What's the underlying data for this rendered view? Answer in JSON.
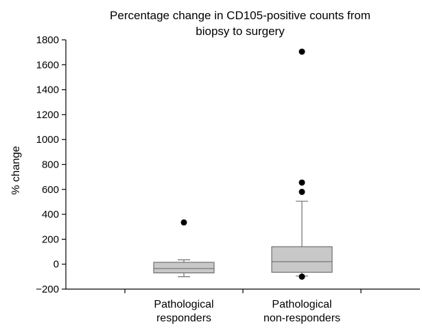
{
  "chart_data": {
    "type": "box",
    "title": [
      "Percentage change in CD105-positive counts from",
      "biopsy to surgery"
    ],
    "ylabel": "% change",
    "xlabel": "",
    "ylim": [
      -200,
      1800
    ],
    "yticks": [
      -200,
      0,
      200,
      400,
      600,
      800,
      1000,
      1200,
      1400,
      1600,
      1800
    ],
    "ytick_labels": [
      "−200",
      "0",
      "200",
      "400",
      "600",
      "800",
      "1000",
      "1200",
      "1400",
      "1600",
      "1800"
    ],
    "grid": false,
    "colors": {
      "box_fill": "#c8c8c8",
      "box_stroke": "#6e6e6e",
      "outlier": "#000000",
      "axis": "#000000"
    },
    "categories": [
      [
        "Pathological",
        "responders"
      ],
      [
        "Pathological",
        "non-responders"
      ]
    ],
    "boxes": [
      {
        "whisker_low": -100,
        "q1": -70,
        "median": -35,
        "q3": 15,
        "whisker_high": 35,
        "outliers": [
          335
        ]
      },
      {
        "whisker_low": -95,
        "q1": -65,
        "median": 20,
        "q3": 140,
        "whisker_high": 505,
        "outliers": [
          1705,
          655,
          580,
          -100
        ]
      }
    ]
  }
}
